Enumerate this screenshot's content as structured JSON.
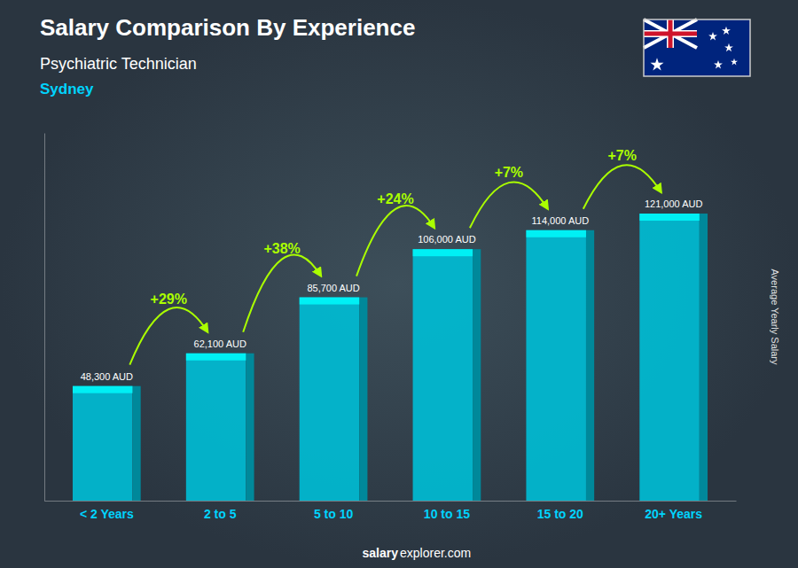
{
  "chart_data": {
    "type": "bar",
    "title": "Salary Comparison By Experience",
    "subtitle": "Psychiatric Technician",
    "city": "Sydney",
    "ylabel": "Average Yearly Salary",
    "footer": [
      "salary",
      "explorer.com"
    ],
    "categories": [
      "< 2 Years",
      "2 to 5",
      "5 to 10",
      "10 to 15",
      "15 to 20",
      "20+ Years"
    ],
    "values": [
      48300,
      62100,
      85700,
      106000,
      114000,
      121000
    ],
    "value_labels": [
      "48,300 AUD",
      "62,100 AUD",
      "85,700 AUD",
      "106,000 AUD",
      "114,000 AUD",
      "121,000 AUD"
    ],
    "data_labels": true,
    "annotations": [
      "+29%",
      "+38%",
      "+24%",
      "+7%",
      "+7%"
    ],
    "color": "#00bcd4",
    "ylim": [
      0,
      155000
    ],
    "grid": false,
    "tick_labels": "x"
  }
}
